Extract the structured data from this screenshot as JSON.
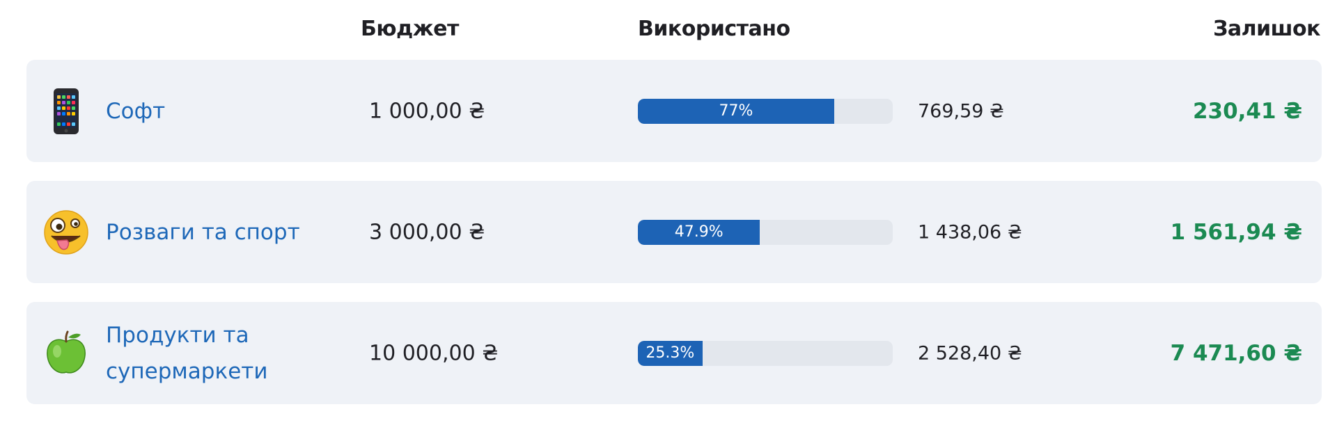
{
  "headers": {
    "budget": "Бюджет",
    "used": "Використано",
    "remaining": "Залишок"
  },
  "colors": {
    "accent": "#1d63b5",
    "link": "#1e68b8",
    "positive": "#1b8a52",
    "row_bg": "#eff2f7"
  },
  "rows": [
    {
      "icon": "mobile-phone-icon",
      "name": "Софт",
      "budget": "1 000,00 ₴",
      "progress_label": "77%",
      "progress_fraction": 0.77,
      "spent": "769,59 ₴",
      "remaining": "230,41 ₴"
    },
    {
      "icon": "zany-face-icon",
      "name": "Розваги та спорт",
      "budget": "3 000,00 ₴",
      "progress_label": "47.9%",
      "progress_fraction": 0.479,
      "spent": "1 438,06 ₴",
      "remaining": "1 561,94 ₴"
    },
    {
      "icon": "green-apple-icon",
      "name": "Продукти та супермаркети",
      "budget": "10 000,00 ₴",
      "progress_label": "25.3%",
      "progress_fraction": 0.253,
      "spent": "2 528,40 ₴",
      "remaining": "7 471,60 ₴"
    }
  ]
}
